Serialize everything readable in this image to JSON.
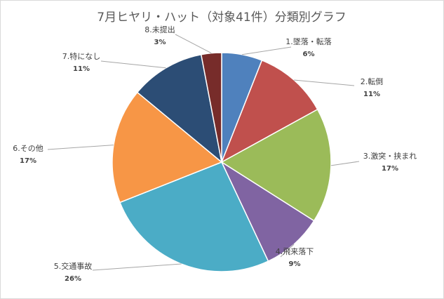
{
  "chart_data": {
    "type": "pie",
    "title": "7月ヒヤリ・ハット（対象41件）分類別グラフ",
    "categories": [
      "1.墜落・転落",
      "2.転倒",
      "3.激突・挟まれ",
      "4.飛来落下",
      "5.交通事故",
      "6.その他",
      "7.特になし",
      "8.未提出"
    ],
    "values": [
      6,
      11,
      17,
      9,
      26,
      17,
      11,
      3
    ],
    "labels": [
      "6%",
      "11%",
      "17%",
      "9%",
      "26%",
      "17%",
      "11%",
      "3%"
    ],
    "colors": [
      "#4f81bd",
      "#c0504d",
      "#9bbb59",
      "#8064a2",
      "#4bacc6",
      "#f79646",
      "#2c4d75",
      "#772c2a"
    ],
    "legend": "none",
    "start_angle": "12 o'clock, clockwise"
  }
}
